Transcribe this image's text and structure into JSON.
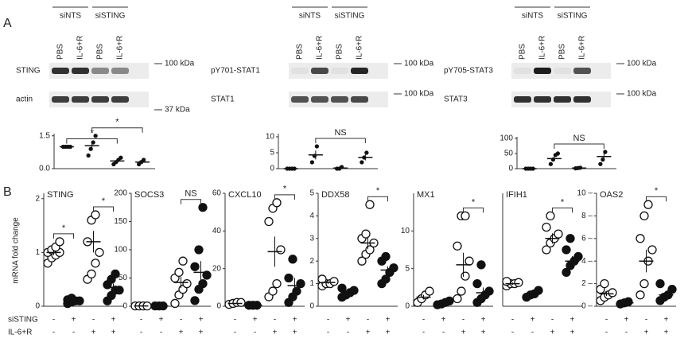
{
  "panels": [
    "A",
    "B"
  ],
  "blots": [
    {
      "groups": [
        "siNTS",
        "siSTING"
      ],
      "lanes": [
        "PBS",
        "IL-6+R",
        "PBS",
        "IL-6+R"
      ],
      "rows": [
        "STING",
        "actin"
      ],
      "markers": [
        "100 kDa",
        "37 kDa"
      ]
    },
    {
      "groups": [
        "siNTS",
        "siSTING"
      ],
      "lanes": [
        "PBS",
        "IL-6+R",
        "PBS",
        "IL-6+R"
      ],
      "rows": [
        "pY701-STAT1",
        "STAT1"
      ],
      "markers": [
        "100 kDa",
        "100 kDa"
      ]
    },
    {
      "groups": [
        "siNTS",
        "siSTING"
      ],
      "lanes": [
        "PBS",
        "IL-6+R",
        "PBS",
        "IL-6+R"
      ],
      "rows": [
        "pY705-STAT3",
        "STAT3"
      ],
      "markers": [
        "100 kDa",
        "100 kDa"
      ]
    }
  ],
  "ylabel": "mRNA fold change",
  "conditions": {
    "labels": [
      "siSTING",
      "IL-6+R"
    ],
    "signs": [
      [
        "-",
        "+",
        "-",
        "+"
      ],
      [
        "-",
        "-",
        "+",
        "+"
      ]
    ]
  },
  "chart_data": [
    {
      "type": "dot",
      "ylim": [
        0,
        1.6
      ],
      "yticks": [
        1.5,
        {
          "value": 0,
          "label": "0.0"
        }
      ],
      "filled": [
        true,
        true,
        true,
        true
      ],
      "groups": [
        [
          1,
          1,
          1,
          1
        ],
        [
          0.6,
          0.9,
          1.2,
          1.5
        ],
        [
          0.2,
          0.3,
          0.4,
          0.5
        ],
        [
          0.2,
          0.3,
          0.4
        ]
      ],
      "means": [
        1,
        1.05,
        0.35,
        0.3
      ],
      "sems": [
        0,
        0.2,
        0.07,
        0.06
      ],
      "comparisons": [
        {
          "label": "*",
          "between": [
            0,
            2
          ]
        },
        {
          "label": "*",
          "between": [
            1,
            3
          ]
        }
      ]
    },
    {
      "type": "dot",
      "ylim": [
        0,
        11
      ],
      "yticks": [
        10,
        5,
        0
      ],
      "filled": [
        true,
        true,
        true,
        true
      ],
      "groups": [
        [
          0,
          0,
          0,
          0
        ],
        [
          2,
          4,
          7
        ],
        [
          0,
          0,
          0.5
        ],
        [
          2,
          3.5,
          5
        ]
      ],
      "means": [
        0,
        4.3,
        0.2,
        3.5
      ],
      "sems": [
        0,
        1.4,
        0.15,
        0.9
      ],
      "comparisons": [
        {
          "label": "NS",
          "between": [
            1,
            3
          ]
        }
      ]
    },
    {
      "type": "dot",
      "ylim": [
        0,
        105
      ],
      "yticks": [
        100,
        50,
        0
      ],
      "filled": [
        true,
        true,
        true,
        true
      ],
      "groups": [
        [
          0,
          0,
          0,
          0
        ],
        [
          15,
          30,
          45,
          50
        ],
        [
          1,
          2,
          3
        ],
        [
          15,
          30,
          55
        ]
      ],
      "means": [
        0,
        33,
        2,
        40
      ],
      "sems": [
        0,
        8,
        0.6,
        12
      ],
      "comparisons": [
        {
          "label": "NS",
          "between": [
            1,
            3
          ]
        }
      ]
    },
    {
      "type": "dot",
      "title": "STING",
      "ylim": [
        0,
        2.1
      ],
      "yticks": [
        0,
        1,
        2
      ],
      "filled": [
        false,
        true,
        false,
        true
      ],
      "groups": [
        [
          0.8,
          0.9,
          0.95,
          1,
          1,
          1.05,
          1.1,
          1.2
        ],
        [
          0.05,
          0.08,
          0.1,
          0.1,
          0.12,
          0.15
        ],
        [
          0.5,
          0.6,
          0.8,
          1,
          1.2,
          1.6,
          1.7
        ],
        [
          0.1,
          0.2,
          0.3,
          0.3,
          0.4,
          0.5,
          0.6
        ]
      ],
      "means": [
        1,
        0.1,
        1.2,
        0.35
      ],
      "sems": [
        0.05,
        0.02,
        0.2,
        0.07
      ],
      "comparisons": [
        {
          "label": "*",
          "between": [
            0,
            1
          ]
        },
        {
          "label": "*",
          "between": [
            2,
            3
          ]
        }
      ]
    },
    {
      "type": "dot",
      "title": "SOCS3",
      "ylim": [
        0,
        200
      ],
      "yticks": [
        0,
        50,
        100,
        150,
        200
      ],
      "filled": [
        false,
        true,
        false,
        true
      ],
      "groups": [
        [
          0.5,
          0.5,
          0.5,
          0.5
        ],
        [
          0.5,
          0.5,
          0.5
        ],
        [
          5,
          20,
          30,
          40,
          50,
          60,
          80
        ],
        [
          10,
          30,
          40,
          55,
          70,
          100,
          175
        ]
      ],
      "means": [
        0.5,
        0.5,
        42,
        60
      ],
      "sems": [
        0.1,
        0.1,
        10,
        20
      ],
      "comparisons": [
        {
          "label": "NS",
          "between": [
            2,
            3
          ]
        }
      ]
    },
    {
      "type": "dot",
      "title": "CXCL10",
      "ylim": [
        0,
        60
      ],
      "yticks": [
        0,
        20,
        40,
        60
      ],
      "filled": [
        false,
        true,
        false,
        true
      ],
      "groups": [
        [
          1,
          1.5,
          2,
          2
        ],
        [
          0.5,
          0.5,
          0.5
        ],
        [
          5,
          8,
          12,
          30,
          45,
          52,
          55
        ],
        [
          2,
          5,
          8,
          12,
          15,
          25
        ]
      ],
      "means": [
        1.5,
        0.5,
        29,
        11
      ],
      "sems": [
        0.3,
        0.1,
        8,
        4
      ],
      "comparisons": [
        {
          "label": "*",
          "between": [
            2,
            3
          ]
        }
      ]
    },
    {
      "type": "dot",
      "title": "DDX58",
      "ylim": [
        0,
        5
      ],
      "yticks": [
        0,
        1,
        2,
        3,
        4,
        5
      ],
      "filled": [
        false,
        true,
        false,
        true
      ],
      "groups": [
        [
          0.9,
          1,
          1,
          1.1,
          1.2
        ],
        [
          0.4,
          0.5,
          0.6,
          0.7,
          0.8
        ],
        [
          2,
          2.3,
          2.5,
          2.8,
          3,
          3.2,
          4.5
        ],
        [
          1,
          1.2,
          1.5,
          1.7,
          2,
          2.2
        ]
      ],
      "means": [
        1.05,
        0.6,
        2.8,
        1.6
      ],
      "sems": [
        0.06,
        0.07,
        0.28,
        0.17
      ],
      "comparisons": [
        {
          "label": "*",
          "between": [
            2,
            3
          ]
        }
      ]
    },
    {
      "type": "dot",
      "title": "MX1",
      "ylim": [
        0,
        15
      ],
      "yticks": [
        0,
        5,
        10
      ],
      "filled": [
        false,
        true,
        false,
        true
      ],
      "groups": [
        [
          0.5,
          1,
          1.5,
          2
        ],
        [
          0.2,
          0.3,
          0.5,
          0.7
        ],
        [
          1,
          2,
          4,
          6,
          8,
          12,
          12
        ],
        [
          0.5,
          1,
          1.5,
          2,
          3,
          5.5
        ]
      ],
      "means": [
        1.2,
        0.4,
        5.5,
        1.8
      ],
      "sems": [
        0.3,
        0.1,
        1.6,
        0.7
      ],
      "comparisons": [
        {
          "label": "*",
          "between": [
            2,
            3
          ]
        }
      ]
    },
    {
      "type": "dot",
      "title": "IFIH1",
      "ylim": [
        0,
        5
      ],
      "yticks": [],
      "filled": [
        false,
        true,
        false,
        true
      ],
      "groups": [
        [
          0.9,
          1,
          1,
          1.05,
          1.1
        ],
        [
          0.4,
          0.5,
          0.55,
          0.7
        ],
        [
          2.5,
          2.8,
          3,
          3.2,
          3.5,
          4
        ],
        [
          1.5,
          1.8,
          2,
          2.2,
          2.5,
          3
        ]
      ],
      "means": [
        1,
        0.55,
        3,
        2
      ],
      "sems": [
        0.05,
        0.06,
        0.23,
        0.22
      ],
      "comparisons": [
        {
          "label": "*",
          "between": [
            2,
            3
          ]
        }
      ]
    },
    {
      "type": "dot",
      "title": "OAS2",
      "ylim": [
        0,
        10
      ],
      "yticks": [
        {
          "value": 0,
          "label": "0 –"
        },
        {
          "value": 2,
          "label": "2 –"
        },
        {
          "value": 4,
          "label": "4 –"
        },
        {
          "value": 6,
          "label": "6 –"
        },
        {
          "value": 8,
          "label": "8 –"
        },
        {
          "value": 10,
          "label": "10 –"
        }
      ],
      "filled": [
        false,
        true,
        false,
        true
      ],
      "groups": [
        [
          0.5,
          0.8,
          1,
          1.2,
          1.5,
          2
        ],
        [
          0.2,
          0.3,
          0.4
        ],
        [
          1,
          2,
          4,
          5,
          6,
          8,
          9
        ],
        [
          0.5,
          0.8,
          1,
          1.5,
          2
        ]
      ],
      "means": [
        1.1,
        0.3,
        4,
        1
      ],
      "sems": [
        0.2,
        0.05,
        1,
        0.2
      ],
      "comparisons": [
        {
          "label": "*",
          "between": [
            2,
            3
          ]
        }
      ]
    }
  ]
}
